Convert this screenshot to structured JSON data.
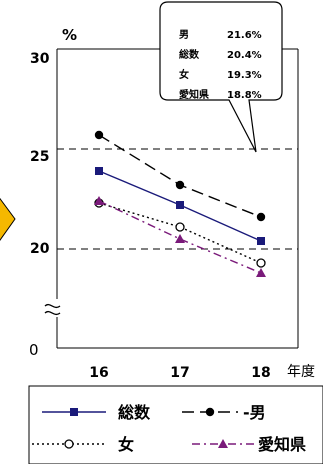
{
  "chart_data": {
    "type": "line",
    "y_unit_label": "%",
    "x_unit_label": "年度",
    "categories": [
      "16",
      "17",
      "18"
    ],
    "y_axis": {
      "range_shown": [
        20,
        30
      ],
      "tick_labels": [
        "30",
        "25",
        "20",
        "0"
      ],
      "axis_break": true
    },
    "grid": "dashed horizontal at 20 and 25",
    "series": [
      {
        "name": "総数",
        "values": [
          23.9,
          22.2,
          20.4
        ],
        "color": "#1a1a7a",
        "line_style": "solid",
        "marker": "square-filled"
      },
      {
        "name": "男",
        "values": [
          25.7,
          23.2,
          21.6
        ],
        "color": "#000000",
        "line_style": "long-dash",
        "marker": "circle-filled"
      },
      {
        "name": "女",
        "values": [
          22.3,
          21.1,
          19.3
        ],
        "color": "#000000",
        "line_style": "dotted",
        "marker": "circle-open"
      },
      {
        "name": "愛知県",
        "values": [
          22.4,
          20.5,
          18.8
        ],
        "color": "#7a1a7a",
        "line_style": "dash-dot",
        "marker": "triangle-filled"
      }
    ],
    "callout": {
      "rows": [
        {
          "label": "男",
          "value": "21.6%"
        },
        {
          "label": "総数",
          "value": "20.4%"
        },
        {
          "label": "女",
          "value": "19.3%"
        },
        {
          "label": "愛知県",
          "value": "18.8%"
        }
      ]
    },
    "legend": {
      "placement": "bottom",
      "rows": [
        [
          {
            "series": "総数",
            "text": "総数"
          },
          {
            "series": "男",
            "text": "-男"
          }
        ],
        [
          {
            "series": "女",
            "text": "女"
          },
          {
            "series": "愛知県",
            "text": "愛知県"
          }
        ]
      ]
    },
    "left_arrow_color": "#f5b800"
  }
}
